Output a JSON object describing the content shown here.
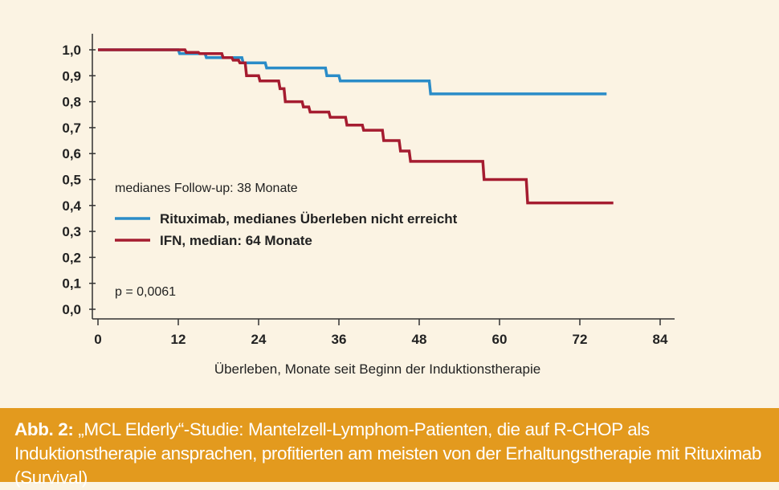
{
  "chart_data": {
    "type": "line",
    "step": true,
    "xlabel": "Überleben, Monate seit Beginn der Induktionstherapie",
    "ylabel": "",
    "xlim": [
      0,
      84
    ],
    "ylim": [
      0,
      1
    ],
    "xticks": [
      "0",
      "12",
      "24",
      "36",
      "48",
      "60",
      "72",
      "84"
    ],
    "yticks": [
      "0,0",
      "0,1",
      "0,2",
      "0,3",
      "0,4",
      "0,5",
      "0,6",
      "0,7",
      "0,8",
      "0,9",
      "1,0"
    ],
    "series": [
      {
        "name": "Rituximab, medianes Überleben nicht erreicht",
        "color": "#2a8cc8",
        "x": [
          0,
          12,
          12.2,
          16,
          16.2,
          21.5,
          21.7,
          25,
          25.2,
          34,
          34.2,
          36,
          36.2,
          49.5,
          49.7,
          76
        ],
        "y": [
          1.0,
          1.0,
          0.985,
          0.985,
          0.97,
          0.97,
          0.95,
          0.95,
          0.93,
          0.93,
          0.9,
          0.9,
          0.88,
          0.88,
          0.83,
          0.83
        ]
      },
      {
        "name": "IFN, median: 64 Monate",
        "color": "#a51c30",
        "x": [
          0,
          13,
          13.2,
          15,
          15.2,
          18.5,
          18.7,
          20,
          20.2,
          21,
          21.2,
          22,
          22.2,
          24,
          24.2,
          27,
          27.2,
          27.8,
          28,
          30.5,
          30.7,
          31.5,
          31.7,
          34.5,
          34.7,
          37,
          37.2,
          39.5,
          39.7,
          42.5,
          42.7,
          45,
          45.2,
          46.5,
          46.7,
          57.5,
          57.7,
          64,
          64.2,
          77
        ],
        "y": [
          1.0,
          1.0,
          0.99,
          0.99,
          0.985,
          0.985,
          0.97,
          0.97,
          0.96,
          0.96,
          0.95,
          0.95,
          0.9,
          0.9,
          0.88,
          0.88,
          0.85,
          0.85,
          0.8,
          0.8,
          0.78,
          0.78,
          0.76,
          0.76,
          0.74,
          0.74,
          0.71,
          0.71,
          0.69,
          0.69,
          0.65,
          0.65,
          0.61,
          0.61,
          0.57,
          0.57,
          0.5,
          0.5,
          0.41,
          0.41
        ]
      }
    ],
    "annotations": {
      "followup": "medianes Follow-up: 38 Monate",
      "pvalue": "p = 0,0061"
    },
    "legend_placement": "center-left"
  },
  "caption": {
    "lead": "Abb. 2:",
    "text": " „MCL Elderly“-Studie: Mantelzell-Lymphom-Patienten, die auf R-CHOP als Induktionstherapie ansprachen, profitierten am meisten von der Erhaltungstherapie mit Rituximab (Survival)"
  },
  "colors": {
    "background": "#fbf3e3",
    "caption_bg": "#e39a1e"
  }
}
